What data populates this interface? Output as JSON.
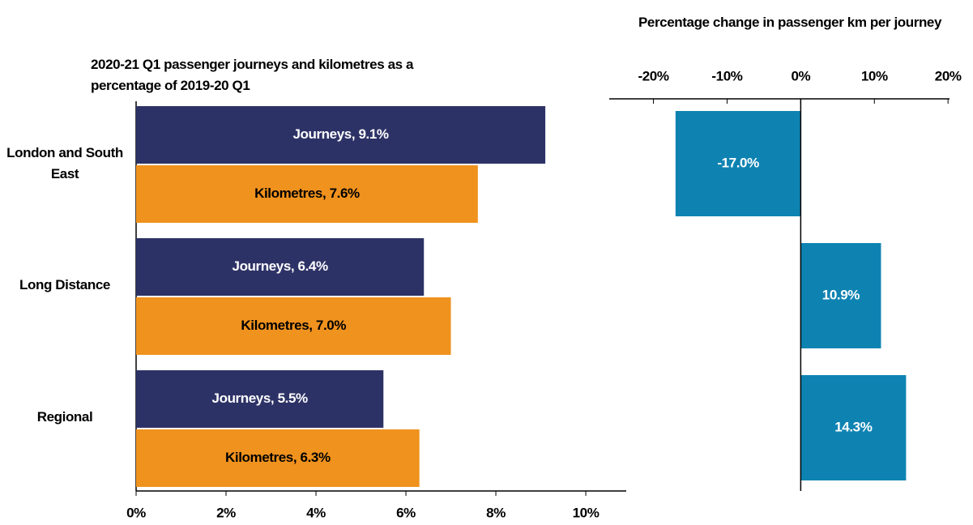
{
  "chart_data": [
    {
      "type": "hbar",
      "title": "2020-21 Q1 passenger journeys and kilometres as a percentage of 2019-20 Q1",
      "categories": [
        "London and South East",
        "Long Distance",
        "Regional"
      ],
      "series": [
        {
          "name": "Journeys",
          "color": "#2d3266",
          "values": [
            9.1,
            6.4,
            5.5
          ],
          "value_labels": [
            "Journeys, 9.1%",
            "Journeys, 6.4%",
            "Journeys, 5.5%"
          ]
        },
        {
          "name": "Kilometres",
          "color": "#f0921e",
          "values": [
            7.6,
            7.0,
            6.3
          ],
          "value_labels": [
            "Kilometres, 7.6%",
            "Kilometres, 7.0%",
            "Kilometres, 6.3%"
          ]
        }
      ],
      "xlim": [
        0,
        10.9
      ],
      "xticks": [
        {
          "value": 0,
          "label": "0%"
        },
        {
          "value": 2,
          "label": "2%"
        },
        {
          "value": 4,
          "label": "4%"
        },
        {
          "value": 6,
          "label": "6%"
        },
        {
          "value": 8,
          "label": "8%"
        },
        {
          "value": 10,
          "label": "10%"
        }
      ]
    },
    {
      "type": "hbar",
      "title": "Percentage change in passenger km per journey",
      "values": [
        -17.0,
        10.9,
        14.3
      ],
      "value_labels": [
        "-17.0%",
        "10.9%",
        "14.3%"
      ],
      "color": "#0e83b2",
      "xlim": [
        -26,
        20.2
      ],
      "xticks": [
        {
          "value": -20,
          "label": "-20%"
        },
        {
          "value": -10,
          "label": "-10%"
        },
        {
          "value": 0,
          "label": "0%"
        },
        {
          "value": 10,
          "label": "10%"
        },
        {
          "value": 20,
          "label": "20%"
        }
      ]
    }
  ]
}
